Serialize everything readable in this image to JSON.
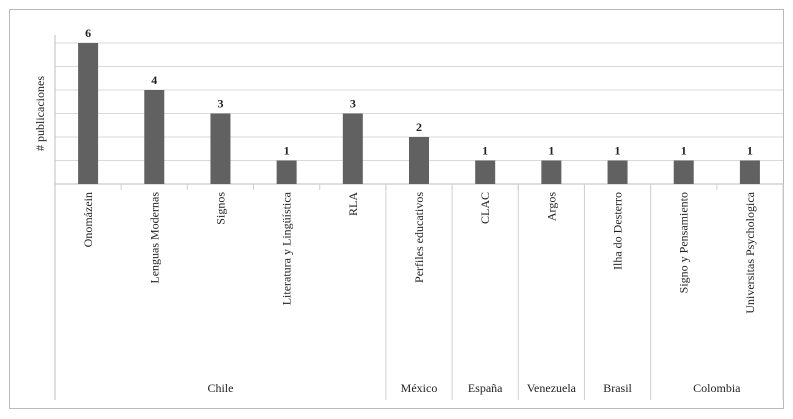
{
  "chart_data": {
    "type": "bar",
    "title": "",
    "xlabel": "",
    "ylabel": "# publicaciones",
    "ylim": [
      0,
      6
    ],
    "grid": true,
    "categories": [
      "Onomázein",
      "Lenguas Modernas",
      "Signos",
      "Literatura y Lingüística",
      "RLA",
      "Perfiles educativos",
      "CLAC",
      "Argos",
      "Ilha do Desterro",
      "Signo y Pensamiento",
      "Universitas Psychologica"
    ],
    "values": [
      6,
      4,
      3,
      1,
      3,
      2,
      1,
      1,
      1,
      1,
      1
    ],
    "groups": [
      {
        "name": "Chile",
        "count": 5
      },
      {
        "name": "México",
        "count": 1
      },
      {
        "name": "España",
        "count": 1
      },
      {
        "name": "Venezuela",
        "count": 1
      },
      {
        "name": "Brasil",
        "count": 1
      },
      {
        "name": "Colombia",
        "count": 2
      }
    ],
    "bar_color": "#616161",
    "grid_color": "#d9d9d9"
  }
}
